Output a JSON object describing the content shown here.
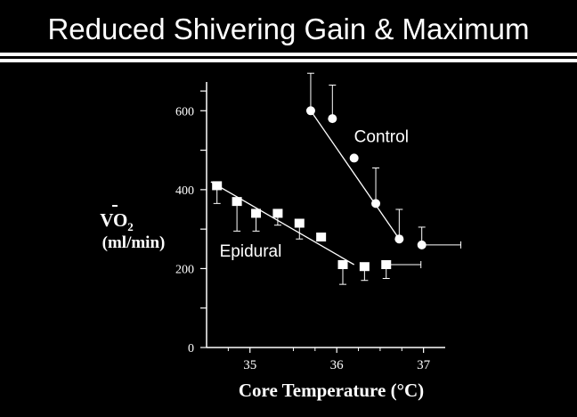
{
  "title": "Reduced Shivering Gain & Maximum",
  "colors": {
    "background": "#000000",
    "foreground": "#ffffff"
  },
  "chart_data": {
    "type": "scatter",
    "title": "",
    "xlabel": "Core Temperature (°C)",
    "ylabel_line1": "VO2",
    "ylabel_line2": "(ml/min)",
    "xlim": [
      34.5,
      37.25
    ],
    "ylim": [
      0,
      700
    ],
    "x_ticks": [
      35,
      36,
      37
    ],
    "x_tick_labels": [
      "35",
      "36",
      "37"
    ],
    "y_ticks": [
      0,
      200,
      400,
      600
    ],
    "y_tick_labels": [
      "0",
      "200",
      "400",
      "600"
    ],
    "y_minor_ticks": [
      100,
      300,
      500
    ],
    "grid": false,
    "legend": "none",
    "series": [
      {
        "name": "Control",
        "marker": "circle",
        "x": [
          35.7,
          35.95,
          36.2,
          36.45,
          36.72,
          36.98
        ],
        "y": [
          600,
          580,
          480,
          365,
          275,
          260
        ],
        "err_up": [
          95,
          85,
          0,
          90,
          75,
          45
        ],
        "xerr": [
          0,
          0,
          0,
          0,
          0,
          0.45
        ],
        "label_at": [
          36.2,
          520
        ],
        "fit": [
          [
            35.7,
            600
          ],
          [
            36.72,
            275
          ]
        ]
      },
      {
        "name": "Epidural",
        "marker": "square",
        "x": [
          34.62,
          34.85,
          35.07,
          35.32,
          35.57,
          35.82,
          36.07,
          36.32,
          36.57
        ],
        "y": [
          410,
          370,
          340,
          340,
          315,
          280,
          210,
          205,
          210
        ],
        "err_down": [
          45,
          75,
          45,
          30,
          40,
          0,
          50,
          35,
          35
        ],
        "xerr": [
          0,
          0,
          0,
          0,
          0,
          0,
          0,
          0,
          0.4
        ],
        "label_at": [
          34.65,
          230
        ],
        "fit": [
          [
            34.55,
            420
          ],
          [
            36.2,
            210
          ]
        ]
      }
    ]
  }
}
